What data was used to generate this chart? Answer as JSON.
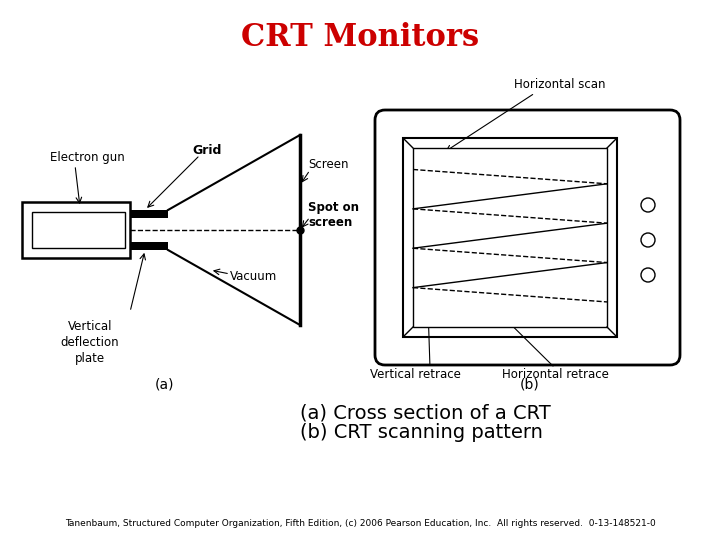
{
  "title": "CRT Monitors",
  "title_color": "#cc0000",
  "title_fontsize": 22,
  "subtitle_a": "(a) Cross section of a CRT",
  "subtitle_b": "(b) CRT scanning pattern",
  "subtitle_fontsize": 14,
  "footer": "Tanenbaum, Structured Computer Organization, Fifth Edition, (c) 2006 Pearson Education, Inc.  All rights reserved.  0-13-148521-0",
  "footer_fontsize": 6.5,
  "label_a": "(a)",
  "label_b": "(b)",
  "bg_color": "#ffffff"
}
